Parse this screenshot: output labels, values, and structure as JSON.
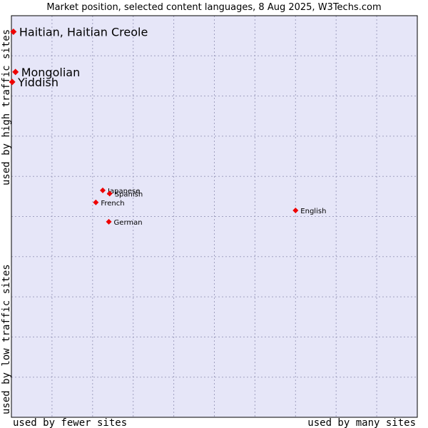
{
  "chart_data": {
    "type": "scatter",
    "title": "Market position, selected content languages, 8 Aug 2025, W3Techs.com",
    "xlabel_left": "used by fewer sites",
    "xlabel_right": "used by many sites",
    "ylabel_bottom": "used by low traffic sites",
    "ylabel_top": "used by high traffic sites",
    "xlim": [
      0,
      10
    ],
    "ylim": [
      0,
      10
    ],
    "grid": true,
    "points": [
      {
        "label": "Haitian, Haitian Creole",
        "x": 0.05,
        "y": 9.6,
        "emphasis": true
      },
      {
        "label": "Mongolian",
        "x": 0.1,
        "y": 8.6,
        "emphasis": true
      },
      {
        "label": "Yiddish",
        "x": 0.02,
        "y": 8.35,
        "emphasis": true
      },
      {
        "label": "Japanese",
        "x": 2.25,
        "y": 5.65,
        "emphasis": false
      },
      {
        "label": "Spanish",
        "x": 2.42,
        "y": 5.57,
        "emphasis": false
      },
      {
        "label": "French",
        "x": 2.08,
        "y": 5.35,
        "emphasis": false
      },
      {
        "label": "German",
        "x": 2.4,
        "y": 4.87,
        "emphasis": false
      },
      {
        "label": "English",
        "x": 7.0,
        "y": 5.15,
        "emphasis": false
      }
    ],
    "colors": {
      "plot_bg": "#e6e6f8",
      "grid": "#a0a0c0",
      "marker": "#ee0000",
      "frame": "#000000"
    }
  }
}
